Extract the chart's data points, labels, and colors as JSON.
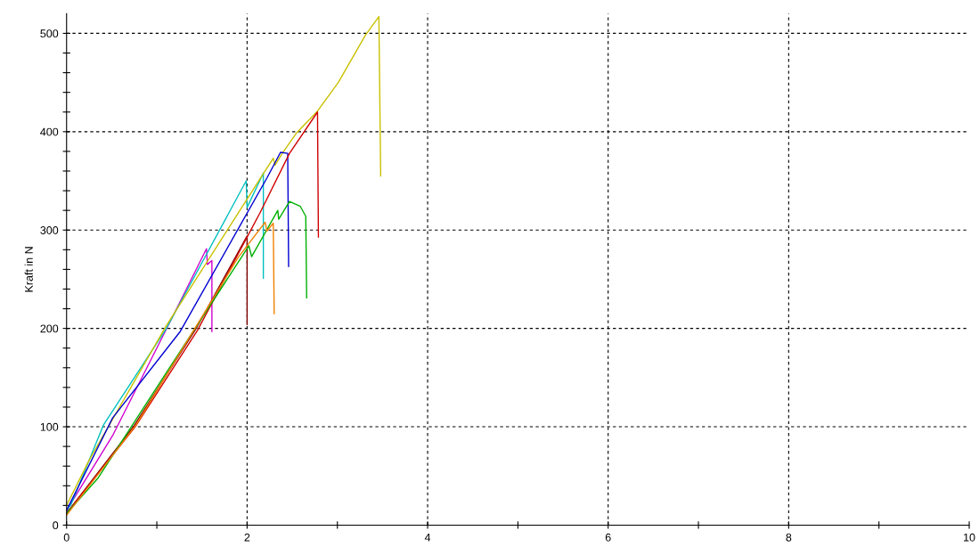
{
  "chart_data": {
    "type": "line",
    "ylabel": "Kraft in N",
    "xlim": [
      0,
      10
    ],
    "ylim": [
      0,
      520
    ],
    "xticks": [
      0,
      {
        "value": 1,
        "label": null
      },
      2,
      {
        "value": 3,
        "label": null
      },
      4,
      {
        "value": 5,
        "label": null
      },
      6,
      {
        "value": 7,
        "label": null
      },
      8,
      {
        "value": 9,
        "label": null
      },
      10
    ],
    "yticks": [
      0,
      {
        "value": 20,
        "label": null
      },
      {
        "value": 40,
        "label": null
      },
      {
        "value": 60,
        "label": null
      },
      {
        "value": 80,
        "label": null
      },
      100,
      {
        "value": 120,
        "label": null
      },
      {
        "value": 140,
        "label": null
      },
      {
        "value": 160,
        "label": null
      },
      {
        "value": 180,
        "label": null
      },
      200,
      {
        "value": 220,
        "label": null
      },
      {
        "value": 240,
        "label": null
      },
      {
        "value": 260,
        "label": null
      },
      {
        "value": 280,
        "label": null
      },
      300,
      {
        "value": 320,
        "label": null
      },
      {
        "value": 340,
        "label": null
      },
      {
        "value": 360,
        "label": null
      },
      {
        "value": 380,
        "label": null
      },
      400,
      {
        "value": 420,
        "label": null
      },
      {
        "value": 440,
        "label": null
      },
      {
        "value": 460,
        "label": null
      },
      {
        "value": 480,
        "label": null
      },
      500
    ],
    "grid": true,
    "line_style": "solid",
    "marker": "none",
    "legend": false,
    "series": [
      {
        "color": "#d000d0",
        "x": [
          0,
          0.02,
          0.51,
          1.17,
          1.55,
          1.56,
          1.61,
          1.61
        ],
        "values": [
          13,
          18,
          91,
          211,
          281,
          265,
          269,
          197
        ]
      },
      {
        "color": "#00c0c0",
        "x": [
          0,
          0.05,
          0.41,
          1.1,
          1.99,
          2.0,
          2.18,
          2.18
        ],
        "values": [
          15,
          21,
          102,
          199,
          350,
          323,
          358,
          251
        ]
      },
      {
        "color": "#c8c000",
        "x": [
          0,
          0.25,
          1.1,
          2.15,
          2.29,
          2.31,
          2.39,
          2.55,
          2.78,
          3.01,
          3.31,
          3.46,
          3.48
        ],
        "values": [
          20,
          66,
          202,
          353,
          373,
          366,
          378,
          399,
          421,
          450,
          498,
          517,
          355
        ]
      },
      {
        "color": "#0000d0",
        "x": [
          0,
          0.51,
          1.26,
          2.22,
          2.37,
          2.45,
          2.46
        ],
        "values": [
          15,
          109,
          197,
          353,
          379,
          378,
          263
        ]
      },
      {
        "color": "#800000",
        "x": [
          0,
          0.74,
          1.43,
          2.0,
          2.0
        ],
        "values": [
          12,
          100,
          199,
          294,
          204
        ]
      },
      {
        "color": "#d00000",
        "x": [
          0,
          0.76,
          1.45,
          2.14,
          2.47,
          2.78,
          2.79
        ],
        "values": [
          12,
          100,
          198,
          317,
          378,
          420,
          293
        ]
      },
      {
        "color": "#00b000",
        "x": [
          0,
          0.35,
          1.02,
          2.02,
          2.05,
          2.34,
          2.35,
          2.47,
          2.59,
          2.65,
          2.66
        ],
        "values": [
          12,
          48,
          143,
          284,
          273,
          320,
          311,
          329,
          324,
          314,
          231
        ]
      },
      {
        "color": "#f08000",
        "x": [
          0,
          0.77,
          1.9,
          2.2,
          2.22,
          2.29,
          2.3
        ],
        "values": [
          10,
          102,
          272,
          308,
          299,
          307,
          215
        ]
      }
    ]
  }
}
